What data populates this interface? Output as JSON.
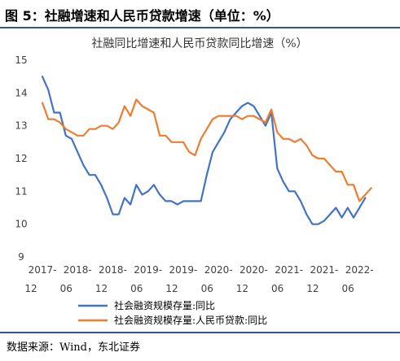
{
  "header": {
    "figure_title": "图 5：社融增速和人民币贷款增速（单位：%）"
  },
  "source": "数据来源：Wind，东北证券",
  "colors": {
    "rule": "#2f5597",
    "series_blue": "#4472c4",
    "series_orange": "#ed7d31"
  },
  "chart_data": {
    "type": "line",
    "title": "社融同比增速和人民币贷款同比增速（%）",
    "xlabel": "",
    "ylabel": "",
    "ylim": [
      9,
      15
    ],
    "yticks": [
      9,
      10,
      11,
      12,
      13,
      14,
      15
    ],
    "xlim": [
      "2017-12",
      "2022-10"
    ],
    "xtick_labels": [
      {
        "date": "2017-12",
        "line1": "2017-",
        "line2": "12"
      },
      {
        "date": "2018-06",
        "line1": "2018-",
        "line2": "06"
      },
      {
        "date": "2018-12",
        "line1": "2018-",
        "line2": "12"
      },
      {
        "date": "2019-06",
        "line1": "2019-",
        "line2": "06"
      },
      {
        "date": "2019-12",
        "line1": "2019-",
        "line2": "12"
      },
      {
        "date": "2020-06",
        "line1": "2020-",
        "line2": "06"
      },
      {
        "date": "2020-12",
        "line1": "2020-",
        "line2": "12"
      },
      {
        "date": "2021-06",
        "line1": "2021-",
        "line2": "06"
      },
      {
        "date": "2021-12",
        "line1": "2021-",
        "line2": "12"
      },
      {
        "date": "2022-06",
        "line1": "2022-",
        "line2": "06"
      }
    ],
    "grid": false,
    "legend_position": "bottom",
    "series": [
      {
        "name": "社会融资规模存量:同比",
        "color": "#4472c4",
        "points": [
          [
            "2017-12",
            14.5
          ],
          [
            "2018-01",
            14.1
          ],
          [
            "2018-02",
            13.4
          ],
          [
            "2018-03",
            13.4
          ],
          [
            "2018-04",
            12.7
          ],
          [
            "2018-05",
            12.6
          ],
          [
            "2018-06",
            12.2
          ],
          [
            "2018-07",
            11.8
          ],
          [
            "2018-08",
            11.5
          ],
          [
            "2018-09",
            11.5
          ],
          [
            "2018-10",
            11.2
          ],
          [
            "2018-11",
            10.8
          ],
          [
            "2018-12",
            10.3
          ],
          [
            "2019-01",
            10.3
          ],
          [
            "2019-02",
            10.8
          ],
          [
            "2019-03",
            10.6
          ],
          [
            "2019-04",
            11.2
          ],
          [
            "2019-05",
            10.9
          ],
          [
            "2019-06",
            11.0
          ],
          [
            "2019-07",
            11.2
          ],
          [
            "2019-08",
            10.9
          ],
          [
            "2019-09",
            10.7
          ],
          [
            "2019-10",
            10.7
          ],
          [
            "2019-11",
            10.6
          ],
          [
            "2019-12",
            10.7
          ],
          [
            "2020-01",
            10.7
          ],
          [
            "2020-02",
            10.7
          ],
          [
            "2020-03",
            10.7
          ],
          [
            "2020-04",
            11.5
          ],
          [
            "2020-05",
            12.2
          ],
          [
            "2020-06",
            12.5
          ],
          [
            "2020-07",
            12.8
          ],
          [
            "2020-08",
            13.2
          ],
          [
            "2020-09",
            13.4
          ],
          [
            "2020-10",
            13.6
          ],
          [
            "2020-11",
            13.7
          ],
          [
            "2020-12",
            13.6
          ],
          [
            "2021-01",
            13.3
          ],
          [
            "2021-02",
            13.0
          ],
          [
            "2021-03",
            13.4
          ],
          [
            "2021-04",
            11.7
          ],
          [
            "2021-05",
            11.3
          ],
          [
            "2021-06",
            11.0
          ],
          [
            "2021-07",
            11.0
          ],
          [
            "2021-08",
            10.7
          ],
          [
            "2021-09",
            10.3
          ],
          [
            "2021-10",
            10.0
          ],
          [
            "2021-11",
            10.0
          ],
          [
            "2021-12",
            10.1
          ],
          [
            "2022-01",
            10.3
          ],
          [
            "2022-02",
            10.5
          ],
          [
            "2022-03",
            10.2
          ],
          [
            "2022-04",
            10.5
          ],
          [
            "2022-05",
            10.2
          ],
          [
            "2022-06",
            10.5
          ],
          [
            "2022-07",
            10.8
          ]
        ]
      },
      {
        "name": "社会融资规模存量:人民币贷款:同比",
        "color": "#ed7d31",
        "points": [
          [
            "2017-12",
            13.7
          ],
          [
            "2018-01",
            13.2
          ],
          [
            "2018-02",
            13.2
          ],
          [
            "2018-03",
            13.1
          ],
          [
            "2018-04",
            12.9
          ],
          [
            "2018-05",
            12.8
          ],
          [
            "2018-06",
            12.7
          ],
          [
            "2018-07",
            12.7
          ],
          [
            "2018-08",
            12.9
          ],
          [
            "2018-09",
            12.9
          ],
          [
            "2018-10",
            13.0
          ],
          [
            "2018-11",
            13.0
          ],
          [
            "2018-12",
            12.9
          ],
          [
            "2019-01",
            13.1
          ],
          [
            "2019-02",
            13.6
          ],
          [
            "2019-03",
            13.3
          ],
          [
            "2019-04",
            13.8
          ],
          [
            "2019-05",
            13.6
          ],
          [
            "2019-06",
            13.5
          ],
          [
            "2019-07",
            13.4
          ],
          [
            "2019-08",
            12.7
          ],
          [
            "2019-09",
            12.7
          ],
          [
            "2019-10",
            12.5
          ],
          [
            "2019-11",
            12.5
          ],
          [
            "2019-12",
            12.5
          ],
          [
            "2020-01",
            12.2
          ],
          [
            "2020-02",
            12.1
          ],
          [
            "2020-03",
            12.6
          ],
          [
            "2020-04",
            12.9
          ],
          [
            "2020-05",
            13.2
          ],
          [
            "2020-06",
            13.3
          ],
          [
            "2020-07",
            13.3
          ],
          [
            "2020-08",
            13.3
          ],
          [
            "2020-09",
            13.3
          ],
          [
            "2020-10",
            13.2
          ],
          [
            "2020-11",
            13.3
          ],
          [
            "2020-12",
            13.3
          ],
          [
            "2021-01",
            13.2
          ],
          [
            "2021-02",
            13.1
          ],
          [
            "2021-03",
            13.5
          ],
          [
            "2021-04",
            12.8
          ],
          [
            "2021-05",
            12.6
          ],
          [
            "2021-06",
            12.6
          ],
          [
            "2021-07",
            12.5
          ],
          [
            "2021-08",
            12.6
          ],
          [
            "2021-09",
            12.4
          ],
          [
            "2021-10",
            12.1
          ],
          [
            "2021-11",
            12.0
          ],
          [
            "2021-12",
            12.0
          ],
          [
            "2022-01",
            11.8
          ],
          [
            "2022-02",
            11.6
          ],
          [
            "2022-03",
            11.6
          ],
          [
            "2022-04",
            11.2
          ],
          [
            "2022-05",
            11.2
          ],
          [
            "2022-06",
            10.7
          ],
          [
            "2022-07",
            10.9
          ],
          [
            "2022-08",
            11.1
          ]
        ]
      }
    ]
  }
}
